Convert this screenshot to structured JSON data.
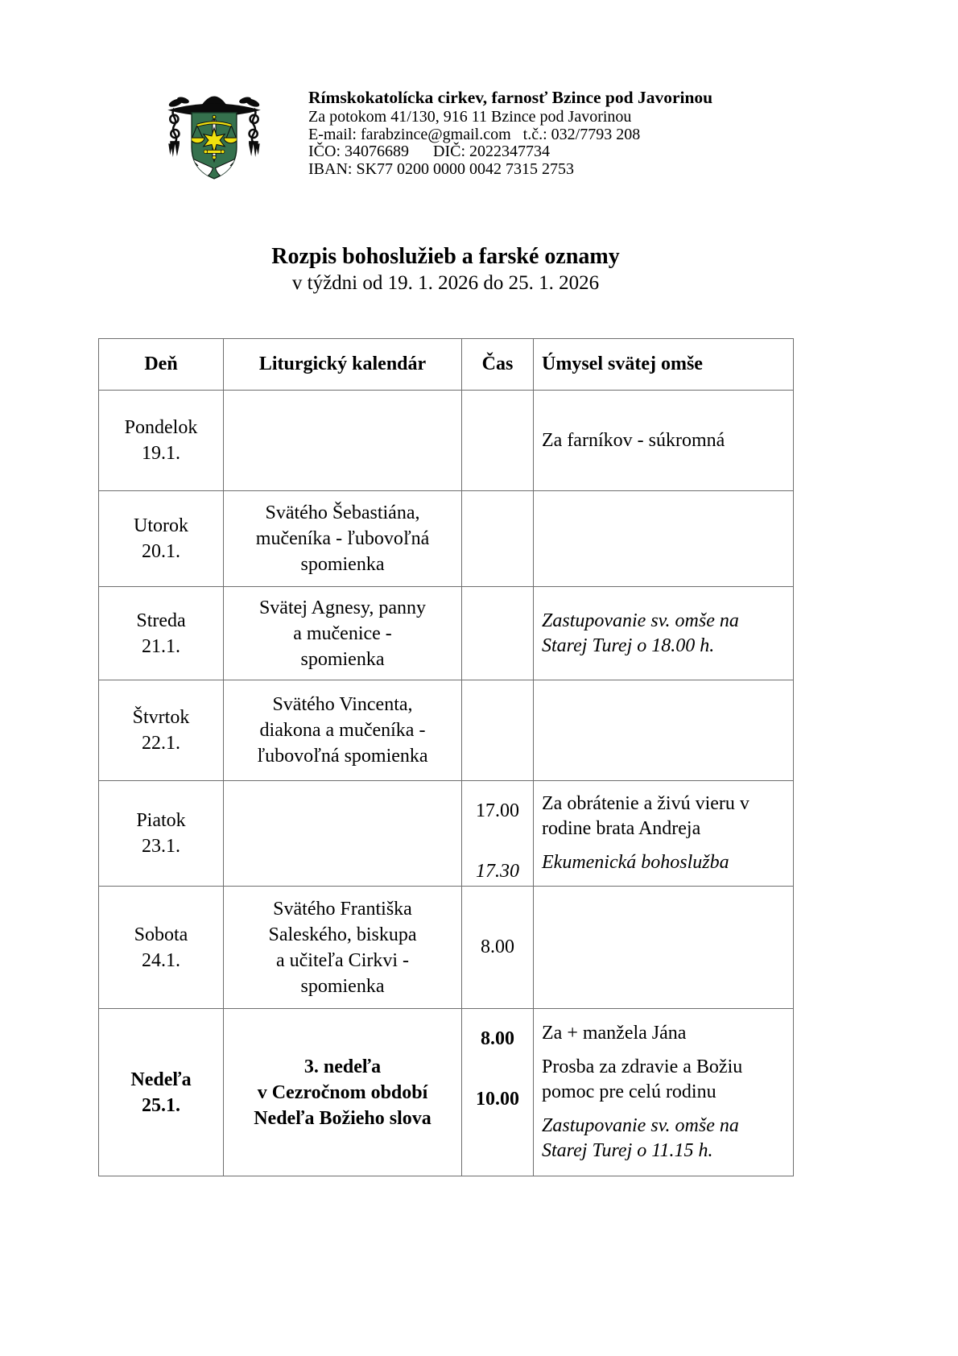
{
  "letterhead": {
    "org_name": "Rímskokatolícka cirkev, farnosť Bzince pod Javorinou",
    "address_line": "Za potokom 41/130, 916 11 Bzince pod Javorinou",
    "contact_line": "E-mail: farabzince@gmail.com   t.č.: 032/7793 208",
    "registry_line": "IČO: 34076689      DIČ: 2022347734",
    "iban_line": "IBAN: SK77 0200 0000 0042 7315 2753",
    "logo": {
      "description": "parish coat of arms: black galero hat with cords and tassels over green shield with gold scales, gold star, white sword and white wings",
      "colors": {
        "shield": "#35714d",
        "gold": "#f0e10e",
        "black": "#0b0b0b",
        "white": "#ffffff"
      }
    }
  },
  "document_title": {
    "main": "Rozpis bohoslužieb a farské oznamy",
    "subtitle": "v týždni od 19. 1. 2026 do 25. 1. 2026"
  },
  "schedule_table": {
    "headers": [
      "Deň",
      "Liturgický kalendár",
      "Čas",
      "Úmysel svätej omše"
    ],
    "rows": [
      {
        "day": "Pondelok",
        "date": "19.1.",
        "emphasis": false,
        "calendar_lines": [],
        "times": [],
        "intentions": [
          {
            "text": "Za farníkov - súkromná",
            "style": "normal"
          }
        ]
      },
      {
        "day": "Utorok",
        "date": "20.1.",
        "emphasis": false,
        "calendar_lines": [
          "Svätého Šebastiána,",
          "mučeníka - ľubovoľná",
          "spomienka"
        ],
        "times": [],
        "intentions": []
      },
      {
        "day": "Streda",
        "date": "21.1.",
        "emphasis": false,
        "calendar_lines": [
          "Svätej Agnesy, panny",
          "a mučenice -",
          "spomienka"
        ],
        "times": [],
        "intentions": [
          {
            "text": "Zastupovanie sv. omše na Starej Turej o 18.00 h.",
            "style": "italic"
          }
        ]
      },
      {
        "day": "Štvrtok",
        "date": "22.1.",
        "emphasis": false,
        "calendar_lines": [
          "Svätého Vincenta,",
          "diakona a mučeníka -",
          "ľubovoľná spomienka"
        ],
        "times": [],
        "intentions": []
      },
      {
        "day": "Piatok",
        "date": "23.1.",
        "emphasis": false,
        "calendar_lines": [],
        "times": [
          {
            "text": "17.00",
            "style": "normal"
          },
          {
            "text": "17.30",
            "style": "italic"
          }
        ],
        "intentions": [
          {
            "text": "Za obrátenie a živú vieru v rodine brata Andreja",
            "style": "normal"
          },
          {
            "text": "Ekumenická bohoslužba",
            "style": "italic"
          }
        ]
      },
      {
        "day": "Sobota",
        "date": "24.1.",
        "emphasis": false,
        "calendar_lines": [
          "Svätého Františka",
          "Saleského, biskupa",
          "a učiteľa Cirkvi -",
          "spomienka"
        ],
        "times": [
          {
            "text": "8.00",
            "style": "normal"
          }
        ],
        "intentions": []
      },
      {
        "day": "Nedeľa",
        "date": "25.1.",
        "emphasis": true,
        "calendar_lines": [
          "3. nedeľa",
          "v Cezročnom období",
          "Nedeľa Božieho slova"
        ],
        "times": [
          {
            "text": "8.00",
            "style": "bold"
          },
          {
            "text": "10.00",
            "style": "bold"
          }
        ],
        "intentions": [
          {
            "text": "Za + manžela Jána",
            "style": "normal"
          },
          {
            "text": "Prosba za zdravie a Božiu pomoc pre celú rodinu",
            "style": "normal"
          },
          {
            "text": "Zastupovanie sv. omše na Starej Turej o 11.15 h.",
            "style": "italic"
          }
        ]
      }
    ]
  }
}
